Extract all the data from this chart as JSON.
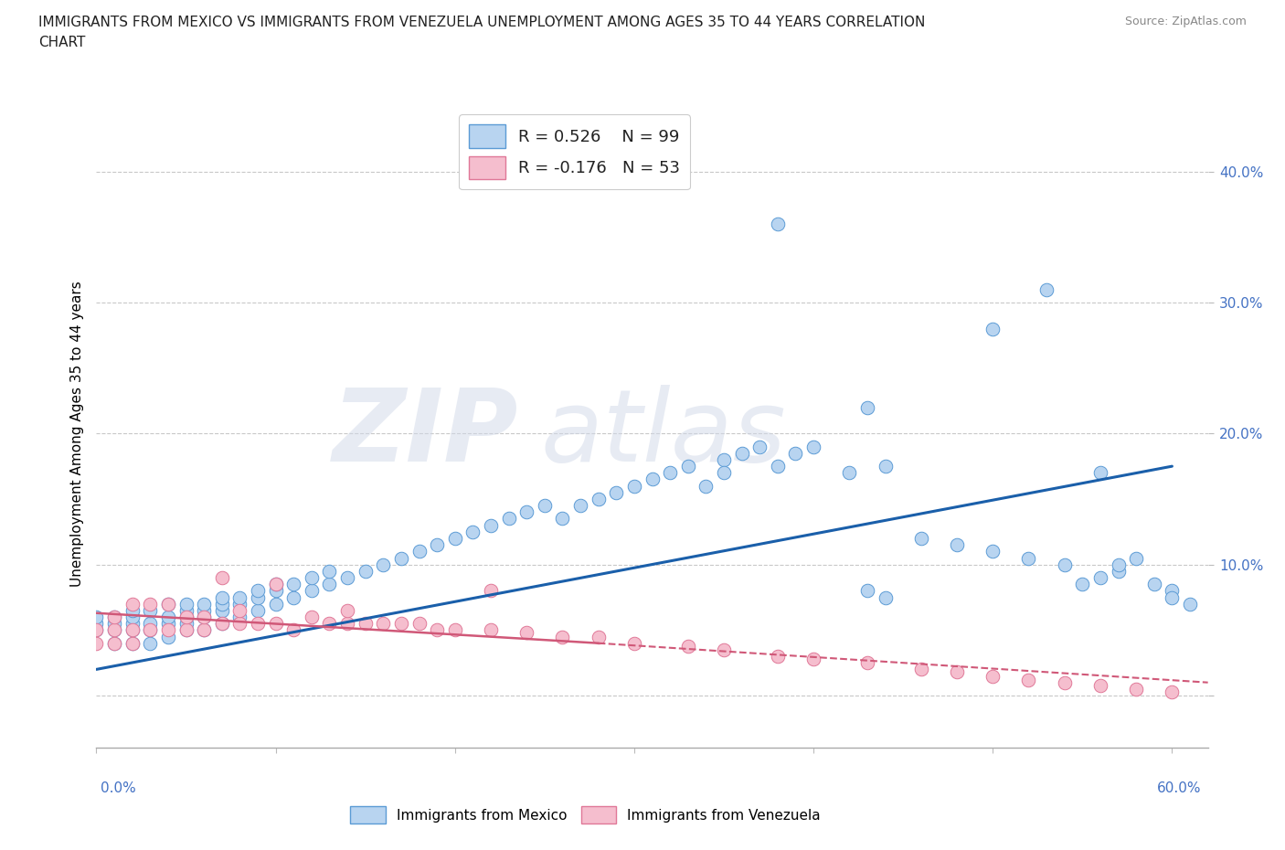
{
  "title_line1": "IMMIGRANTS FROM MEXICO VS IMMIGRANTS FROM VENEZUELA UNEMPLOYMENT AMONG AGES 35 TO 44 YEARS CORRELATION",
  "title_line2": "CHART",
  "source_text": "Source: ZipAtlas.com",
  "ylabel": "Unemployment Among Ages 35 to 44 years",
  "x_lim": [
    0.0,
    0.62
  ],
  "y_lim": [
    -0.04,
    0.44
  ],
  "y_ticks": [
    0.0,
    0.1,
    0.2,
    0.3,
    0.4
  ],
  "y_tick_labels": [
    "",
    "10.0%",
    "20.0%",
    "30.0%",
    "40.0%"
  ],
  "mexico_color": "#b8d4f0",
  "mexico_edge_color": "#5b9bd5",
  "venezuela_color": "#f5bece",
  "venezuela_edge_color": "#e07898",
  "mexico_line_color": "#1a5faa",
  "venezuela_line_color": "#d05878",
  "grid_color": "#c8c8c8",
  "mexico_scatter_x": [
    0.0,
    0.0,
    0.0,
    0.01,
    0.01,
    0.01,
    0.01,
    0.02,
    0.02,
    0.02,
    0.02,
    0.02,
    0.03,
    0.03,
    0.03,
    0.03,
    0.04,
    0.04,
    0.04,
    0.04,
    0.05,
    0.05,
    0.05,
    0.05,
    0.05,
    0.06,
    0.06,
    0.06,
    0.06,
    0.07,
    0.07,
    0.07,
    0.07,
    0.08,
    0.08,
    0.08,
    0.09,
    0.09,
    0.09,
    0.1,
    0.1,
    0.1,
    0.11,
    0.11,
    0.12,
    0.12,
    0.13,
    0.13,
    0.14,
    0.15,
    0.16,
    0.17,
    0.18,
    0.19,
    0.2,
    0.21,
    0.22,
    0.23,
    0.24,
    0.25,
    0.26,
    0.27,
    0.28,
    0.29,
    0.3,
    0.31,
    0.32,
    0.33,
    0.34,
    0.35,
    0.36,
    0.37,
    0.38,
    0.39,
    0.4,
    0.42,
    0.44,
    0.46,
    0.48,
    0.5,
    0.52,
    0.54,
    0.55,
    0.56,
    0.57,
    0.57,
    0.58,
    0.59,
    0.6,
    0.6,
    0.61,
    0.35,
    0.38,
    0.43,
    0.5,
    0.53,
    0.56,
    0.43,
    0.44
  ],
  "mexico_scatter_y": [
    0.05,
    0.055,
    0.06,
    0.04,
    0.05,
    0.055,
    0.06,
    0.04,
    0.05,
    0.055,
    0.06,
    0.065,
    0.04,
    0.05,
    0.055,
    0.065,
    0.045,
    0.055,
    0.06,
    0.07,
    0.05,
    0.055,
    0.06,
    0.065,
    0.07,
    0.05,
    0.06,
    0.065,
    0.07,
    0.055,
    0.065,
    0.07,
    0.075,
    0.06,
    0.07,
    0.075,
    0.065,
    0.075,
    0.08,
    0.07,
    0.08,
    0.085,
    0.075,
    0.085,
    0.08,
    0.09,
    0.085,
    0.095,
    0.09,
    0.095,
    0.1,
    0.105,
    0.11,
    0.115,
    0.12,
    0.125,
    0.13,
    0.135,
    0.14,
    0.145,
    0.135,
    0.145,
    0.15,
    0.155,
    0.16,
    0.165,
    0.17,
    0.175,
    0.16,
    0.18,
    0.185,
    0.19,
    0.175,
    0.185,
    0.19,
    0.17,
    0.175,
    0.12,
    0.115,
    0.11,
    0.105,
    0.1,
    0.085,
    0.09,
    0.095,
    0.1,
    0.105,
    0.085,
    0.08,
    0.075,
    0.07,
    0.17,
    0.36,
    0.22,
    0.28,
    0.31,
    0.17,
    0.08,
    0.075
  ],
  "venezuela_scatter_x": [
    0.0,
    0.0,
    0.01,
    0.01,
    0.01,
    0.02,
    0.02,
    0.02,
    0.03,
    0.03,
    0.04,
    0.04,
    0.05,
    0.05,
    0.06,
    0.06,
    0.07,
    0.08,
    0.08,
    0.09,
    0.1,
    0.11,
    0.12,
    0.13,
    0.14,
    0.14,
    0.15,
    0.16,
    0.17,
    0.18,
    0.19,
    0.2,
    0.22,
    0.24,
    0.26,
    0.28,
    0.3,
    0.33,
    0.35,
    0.38,
    0.4,
    0.43,
    0.46,
    0.48,
    0.5,
    0.52,
    0.54,
    0.56,
    0.58,
    0.6,
    0.22,
    0.07,
    0.1
  ],
  "venezuela_scatter_y": [
    0.04,
    0.05,
    0.04,
    0.05,
    0.06,
    0.04,
    0.05,
    0.07,
    0.05,
    0.07,
    0.05,
    0.07,
    0.05,
    0.06,
    0.05,
    0.06,
    0.055,
    0.055,
    0.065,
    0.055,
    0.055,
    0.05,
    0.06,
    0.055,
    0.055,
    0.065,
    0.055,
    0.055,
    0.055,
    0.055,
    0.05,
    0.05,
    0.05,
    0.048,
    0.045,
    0.045,
    0.04,
    0.038,
    0.035,
    0.03,
    0.028,
    0.025,
    0.02,
    0.018,
    0.015,
    0.012,
    0.01,
    0.008,
    0.005,
    0.003,
    0.08,
    0.09,
    0.085
  ],
  "mexico_trend_x0": 0.0,
  "mexico_trend_x1": 0.6,
  "mexico_trend_y0": 0.02,
  "mexico_trend_y1": 0.175,
  "venezuela_trend_solid_x0": 0.0,
  "venezuela_trend_solid_x1": 0.28,
  "venezuela_trend_solid_y0": 0.063,
  "venezuela_trend_solid_y1": 0.04,
  "venezuela_trend_dash_x0": 0.28,
  "venezuela_trend_dash_x1": 0.62,
  "venezuela_trend_dash_y0": 0.04,
  "venezuela_trend_dash_y1": 0.01
}
